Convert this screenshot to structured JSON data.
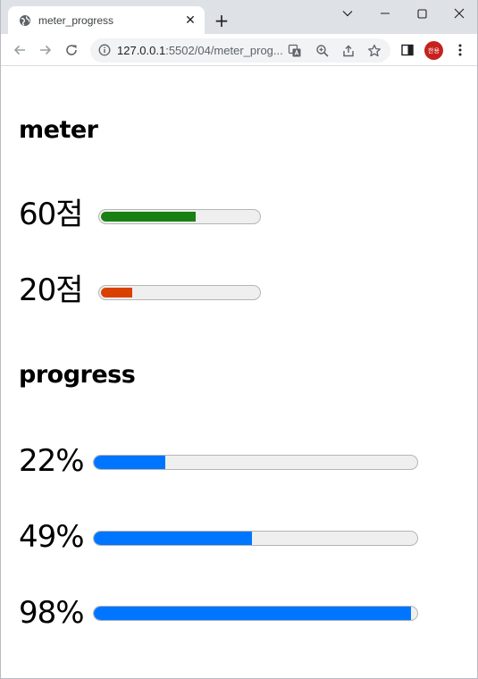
{
  "browser": {
    "tab_title": "meter_progress",
    "new_tab_symbol": "+",
    "url_host": "127.0.0.1",
    "url_rest": ":5502/04/meter_prog...",
    "profile_initials": "한용",
    "profile_color": "#c5221f"
  },
  "page": {
    "meter_heading": "meter",
    "progress_heading": "progress",
    "meters": [
      {
        "label": "60점",
        "value": 0.6,
        "color": "#1a8013"
      },
      {
        "label": "20점",
        "value": 0.2,
        "color": "#d94100"
      }
    ],
    "progress": [
      {
        "label": "22%",
        "value": 0.22
      },
      {
        "label": "49%",
        "value": 0.49
      },
      {
        "label": "98%",
        "value": 0.98
      }
    ],
    "progress_color": "#0075ff"
  }
}
